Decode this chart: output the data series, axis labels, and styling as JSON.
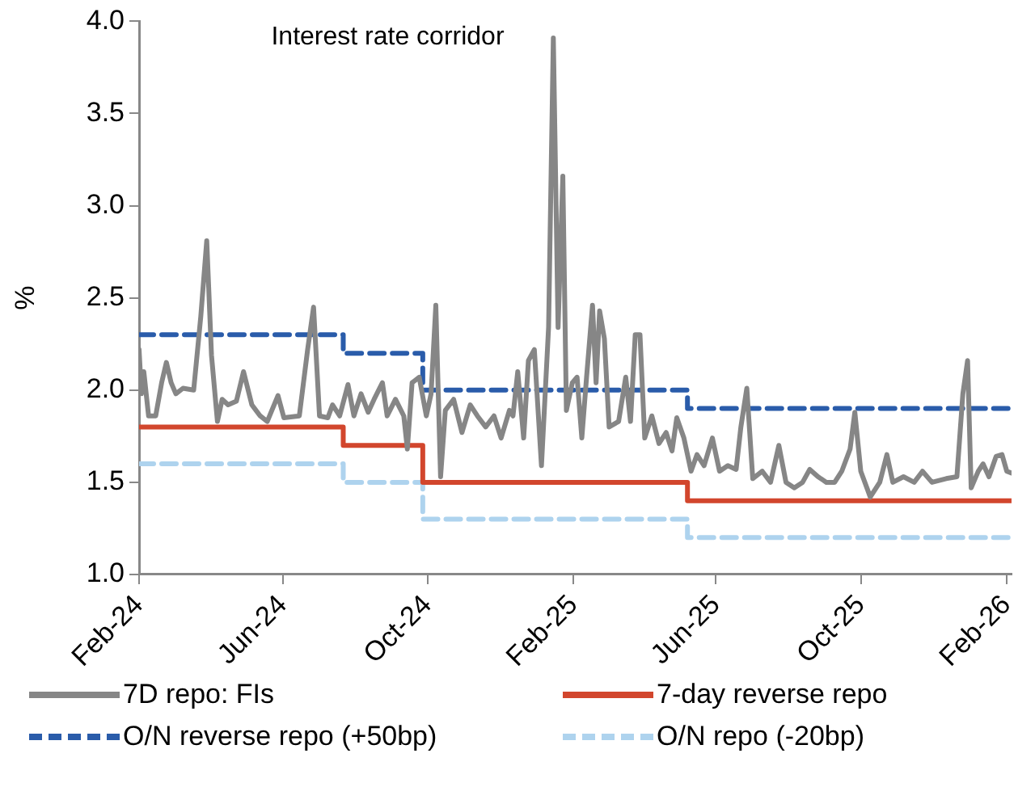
{
  "chart_data": {
    "type": "line",
    "title": "Interest rate corridor",
    "ylabel": "%",
    "legend": "bottom",
    "xlim": [
      "2024-02-01",
      "2026-02-05"
    ],
    "xticks": [
      {
        "value": "2024-02-01",
        "label": "Feb-24"
      },
      {
        "value": "2024-06-01",
        "label": "Jun-24"
      },
      {
        "value": "2024-10-01",
        "label": "Oct-24"
      },
      {
        "value": "2025-02-01",
        "label": "Feb-25"
      },
      {
        "value": "2025-06-01",
        "label": "Jun-25"
      },
      {
        "value": "2025-10-01",
        "label": "Oct-25"
      },
      {
        "value": "2026-02-01",
        "label": "Feb-26"
      }
    ],
    "ylim": [
      1,
      4
    ],
    "yticks": [
      {
        "value": 1,
        "label": "1.0"
      },
      {
        "value": 1.5,
        "label": "1.5"
      },
      {
        "value": 2,
        "label": "2.0"
      },
      {
        "value": 2.5,
        "label": "2.5"
      },
      {
        "value": 3,
        "label": "3.0"
      },
      {
        "value": 3.5,
        "label": "3.5"
      },
      {
        "value": 4,
        "label": "4.0"
      }
    ],
    "series": [
      {
        "name": "7D repo: FIs",
        "type": "line",
        "color": "#868686",
        "line_style": "solid",
        "x": [
          "2024-02-01",
          "2024-02-03",
          "2024-02-05",
          "2024-02-09",
          "2024-02-15",
          "2024-02-20",
          "2024-02-24",
          "2024-02-28",
          "2024-03-03",
          "2024-03-09",
          "2024-03-18",
          "2024-03-24",
          "2024-03-29",
          "2024-04-02",
          "2024-04-07",
          "2024-04-11",
          "2024-04-16",
          "2024-04-23",
          "2024-04-29",
          "2024-05-06",
          "2024-05-13",
          "2024-05-19",
          "2024-05-28",
          "2024-06-02",
          "2024-06-15",
          "2024-06-22",
          "2024-06-27",
          "2024-07-02",
          "2024-07-09",
          "2024-07-13",
          "2024-07-19",
          "2024-07-26",
          "2024-07-31",
          "2024-08-06",
          "2024-08-12",
          "2024-08-17",
          "2024-08-24",
          "2024-08-28",
          "2024-09-04",
          "2024-09-11",
          "2024-09-14",
          "2024-09-18",
          "2024-09-24",
          "2024-09-30",
          "2024-10-04",
          "2024-10-08",
          "2024-10-12",
          "2024-10-16",
          "2024-10-23",
          "2024-10-30",
          "2024-11-06",
          "2024-11-12",
          "2024-11-19",
          "2024-11-26",
          "2024-12-02",
          "2024-12-09",
          "2024-12-12",
          "2024-12-16",
          "2024-12-21",
          "2024-12-25",
          "2024-12-30",
          "2025-01-05",
          "2025-01-11",
          "2025-01-15",
          "2025-01-19",
          "2025-01-23",
          "2025-01-26",
          "2025-01-31",
          "2025-02-04",
          "2025-02-08",
          "2025-02-12",
          "2025-02-17",
          "2025-02-20",
          "2025-02-23",
          "2025-02-27",
          "2025-03-03",
          "2025-03-11",
          "2025-03-17",
          "2025-03-21",
          "2025-03-25",
          "2025-03-29",
          "2025-04-02",
          "2025-04-08",
          "2025-04-14",
          "2025-04-20",
          "2025-04-25",
          "2025-04-29",
          "2025-05-05",
          "2025-05-11",
          "2025-05-16",
          "2025-05-22",
          "2025-05-29",
          "2025-06-04",
          "2025-06-11",
          "2025-06-18",
          "2025-06-22",
          "2025-06-27",
          "2025-07-02",
          "2025-07-10",
          "2025-07-17",
          "2025-07-24",
          "2025-07-30",
          "2025-08-06",
          "2025-08-13",
          "2025-08-19",
          "2025-08-26",
          "2025-09-02",
          "2025-09-09",
          "2025-09-15",
          "2025-09-22",
          "2025-09-26",
          "2025-10-01",
          "2025-10-09",
          "2025-10-17",
          "2025-10-23",
          "2025-10-28",
          "2025-11-06",
          "2025-11-15",
          "2025-11-22",
          "2025-11-30",
          "2025-12-12",
          "2025-12-21",
          "2025-12-26",
          "2025-12-30",
          "2026-01-02",
          "2026-01-08",
          "2026-01-12",
          "2026-01-17",
          "2026-01-23",
          "2026-01-28",
          "2026-02-01",
          "2026-02-05"
        ],
        "values": [
          2.22,
          1.98,
          2.1,
          1.86,
          1.86,
          2.04,
          2.15,
          2.04,
          1.98,
          2.01,
          2.0,
          2.4,
          2.81,
          2.19,
          1.83,
          1.95,
          1.92,
          1.94,
          2.1,
          1.92,
          1.86,
          1.83,
          1.97,
          1.85,
          1.86,
          2.22,
          2.45,
          1.86,
          1.85,
          1.92,
          1.86,
          2.03,
          1.86,
          1.98,
          1.88,
          1.95,
          2.04,
          1.86,
          1.95,
          1.86,
          1.68,
          2.04,
          2.07,
          1.86,
          1.98,
          2.46,
          1.53,
          1.89,
          1.95,
          1.77,
          1.92,
          1.86,
          1.8,
          1.86,
          1.74,
          1.89,
          1.86,
          2.1,
          1.74,
          2.16,
          2.22,
          1.59,
          2.34,
          3.91,
          2.34,
          3.16,
          1.89,
          2.04,
          2.07,
          1.74,
          2.07,
          2.46,
          2.04,
          2.43,
          2.28,
          1.8,
          1.83,
          2.07,
          1.83,
          2.3,
          2.3,
          1.74,
          1.86,
          1.71,
          1.77,
          1.67,
          1.85,
          1.74,
          1.56,
          1.65,
          1.59,
          1.74,
          1.56,
          1.59,
          1.57,
          1.8,
          2.01,
          1.52,
          1.56,
          1.5,
          1.7,
          1.5,
          1.47,
          1.5,
          1.57,
          1.53,
          1.5,
          1.5,
          1.56,
          1.68,
          1.88,
          1.56,
          1.42,
          1.5,
          1.65,
          1.5,
          1.53,
          1.5,
          1.56,
          1.5,
          1.52,
          1.53,
          1.98,
          2.16,
          1.47,
          1.56,
          1.6,
          1.53,
          1.64,
          1.65,
          1.56,
          1.55
        ]
      },
      {
        "name": "7-day reverse repo",
        "type": "step",
        "color": "#d2462d",
        "line_style": "solid",
        "x": [
          "2024-02-01",
          "2024-07-22",
          "2024-09-27",
          "2025-05-08",
          "2026-02-05"
        ],
        "values": [
          1.8,
          1.7,
          1.5,
          1.4,
          1.4
        ]
      },
      {
        "name": "O/N reverse repo (+50bp)",
        "type": "step",
        "color": "#2a5caa",
        "line_style": "dashed",
        "x": [
          "2024-02-01",
          "2024-07-22",
          "2024-09-27",
          "2025-05-08",
          "2026-02-05"
        ],
        "values": [
          2.3,
          2.2,
          2.0,
          1.9,
          1.9
        ]
      },
      {
        "name": "O/N repo (-20bp)",
        "type": "step",
        "color": "#aed3ee",
        "line_style": "dashed",
        "x": [
          "2024-02-01",
          "2024-07-22",
          "2024-09-27",
          "2025-05-08",
          "2026-02-05"
        ],
        "values": [
          1.6,
          1.5,
          1.3,
          1.2,
          1.2
        ]
      }
    ]
  }
}
